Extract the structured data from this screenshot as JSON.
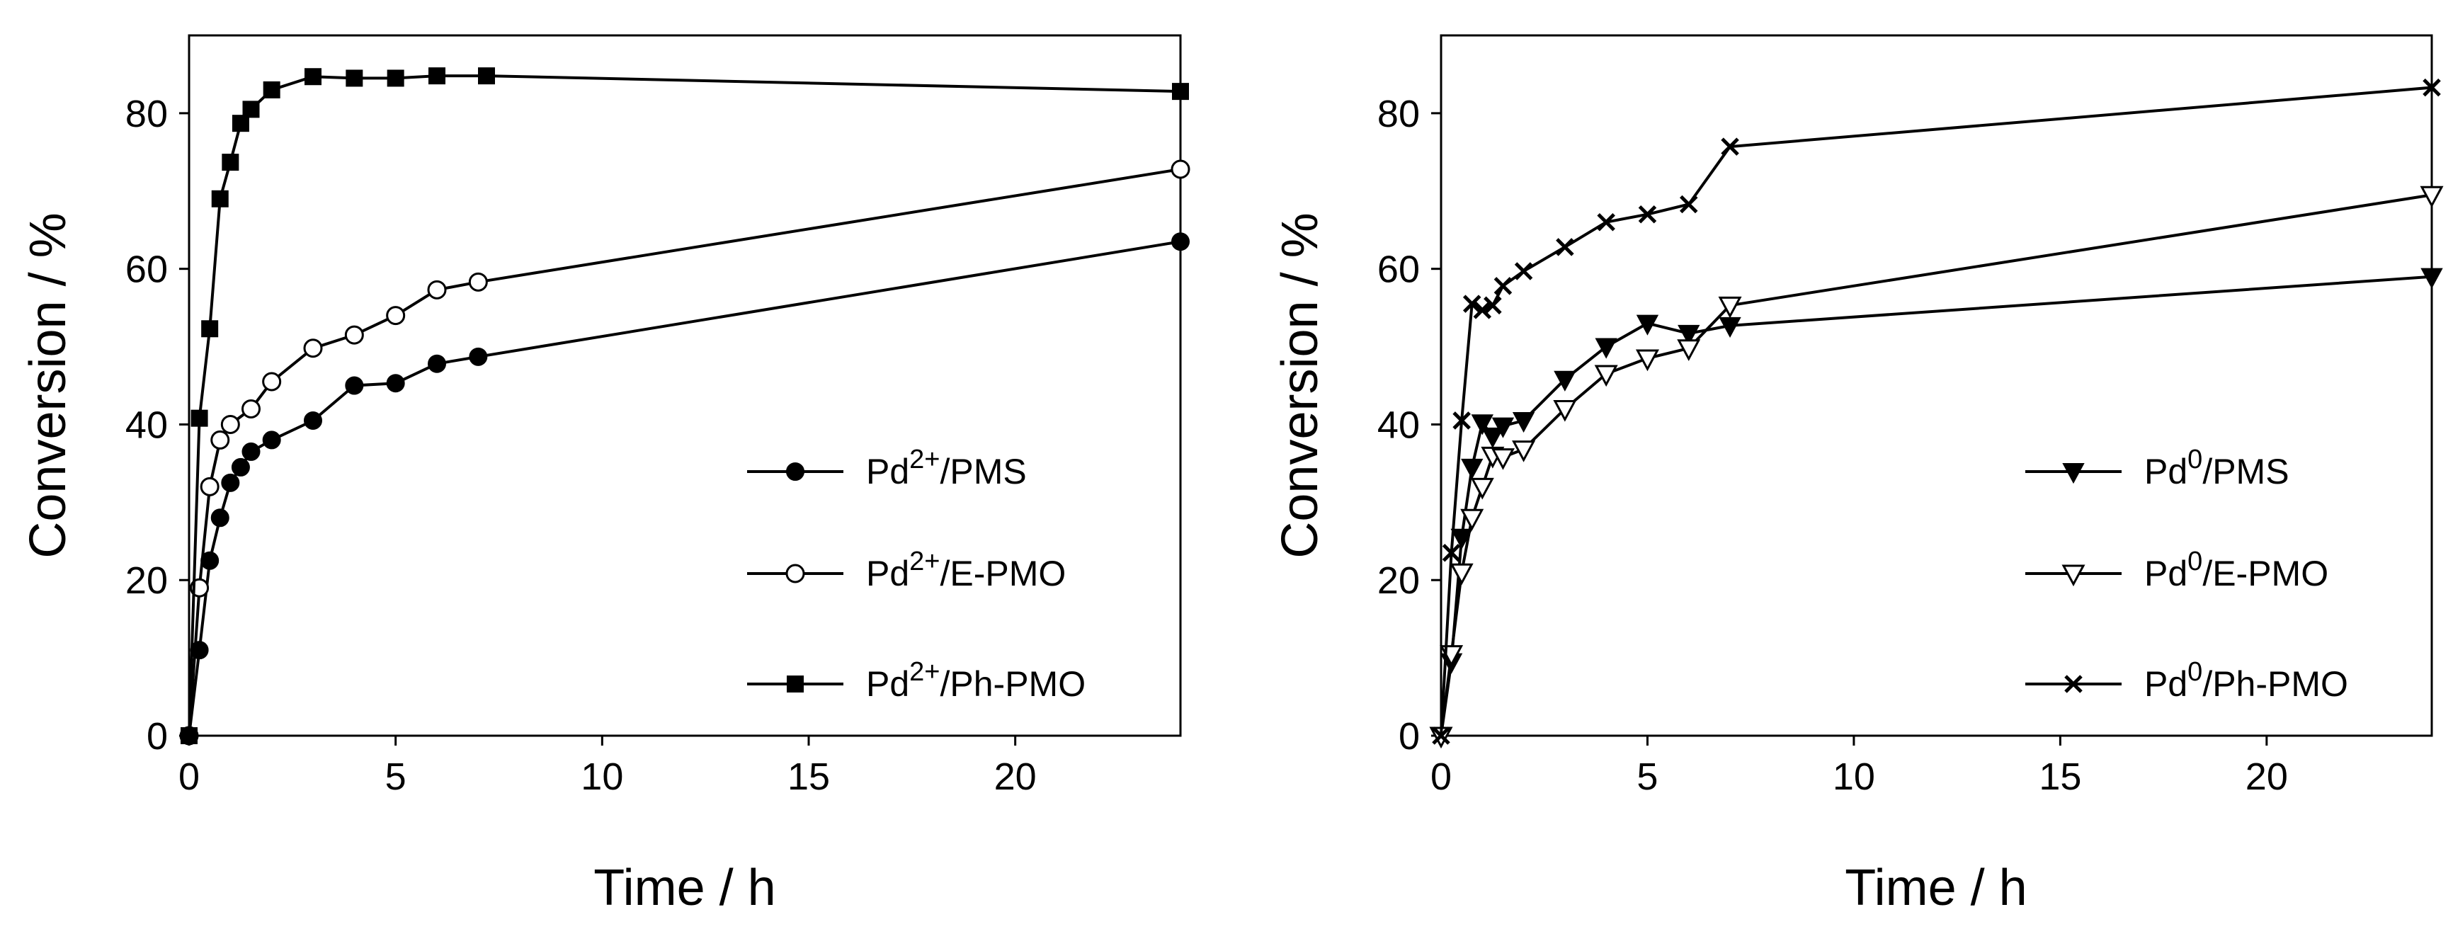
{
  "chart_data": [
    {
      "type": "line",
      "panel": "left",
      "xlabel": "Time / h",
      "ylabel": "Conversion / %",
      "xlim": [
        0,
        24
      ],
      "ylim": [
        0,
        90
      ],
      "xticks": [
        0,
        5,
        10,
        15,
        20
      ],
      "yticks": [
        0,
        20,
        40,
        60,
        80
      ],
      "grid": false,
      "legend_position": "lower-right",
      "series": [
        {
          "name": "Pd2+/PMS",
          "legend_main": "Pd",
          "legend_sup": "2+",
          "legend_rest": "/PMS",
          "marker": "filled-circle",
          "x": [
            0,
            0.25,
            0.5,
            0.75,
            1,
            1.25,
            1.5,
            2,
            3,
            4,
            5,
            6,
            7,
            24
          ],
          "y": [
            0,
            11,
            22.5,
            28,
            32.5,
            34.5,
            36.5,
            38,
            40.5,
            45,
            45.3,
            47.8,
            48.7,
            63.5
          ]
        },
        {
          "name": "Pd2+/E-PMO",
          "legend_main": "Pd",
          "legend_sup": "2+",
          "legend_rest": "/E-PMO",
          "marker": "open-circle",
          "x": [
            0,
            0.25,
            0.5,
            0.75,
            1,
            1.5,
            2,
            3,
            4,
            5,
            6,
            7,
            24
          ],
          "y": [
            0,
            19,
            32,
            38,
            40,
            42,
            45.5,
            49.8,
            51.5,
            54,
            57.3,
            58.3,
            72.8
          ]
        },
        {
          "name": "Pd2+/Ph-PMO",
          "legend_main": "Pd",
          "legend_sup": "2+",
          "legend_rest": "/Ph-PMO",
          "marker": "filled-square",
          "x": [
            0,
            0.25,
            0.5,
            0.75,
            1,
            1.25,
            1.5,
            2,
            3,
            4,
            5,
            6,
            7.2,
            24
          ],
          "y": [
            0,
            40.8,
            52.3,
            69,
            73.7,
            78.7,
            80.5,
            83,
            84.7,
            84.5,
            84.5,
            84.8,
            84.8,
            82.8
          ]
        }
      ]
    },
    {
      "type": "line",
      "panel": "right",
      "xlabel": "Time / h",
      "ylabel": "Conversion / %",
      "xlim": [
        0,
        24
      ],
      "ylim": [
        0,
        90
      ],
      "xticks": [
        0,
        5,
        10,
        15,
        20
      ],
      "yticks": [
        0,
        20,
        40,
        60,
        80
      ],
      "grid": false,
      "legend_position": "lower-right",
      "series": [
        {
          "name": "Pd0/PMS",
          "legend_main": "Pd",
          "legend_sup": "0",
          "legend_rest": "/PMS",
          "marker": "filled-triangle-down",
          "x": [
            0,
            0.25,
            0.5,
            0.75,
            1,
            1.25,
            1.5,
            2,
            3,
            4,
            5,
            6,
            7,
            24
          ],
          "y": [
            0,
            9.5,
            25.5,
            34.5,
            40.2,
            38.5,
            39.8,
            40.5,
            45.8,
            50,
            53,
            51.7,
            52.7,
            59
          ]
        },
        {
          "name": "Pd0/E-PMO",
          "legend_main": "Pd",
          "legend_sup": "0",
          "legend_rest": "/E-PMO",
          "marker": "open-triangle-down",
          "x": [
            0,
            0.25,
            0.5,
            0.75,
            1,
            1.25,
            1.5,
            2,
            3,
            4,
            5,
            6,
            7,
            24
          ],
          "y": [
            0,
            10.5,
            21,
            28,
            32,
            36,
            35.8,
            36.8,
            42,
            46.5,
            48.5,
            49.8,
            55.3,
            69.5
          ]
        },
        {
          "name": "Pd0/Ph-PMO",
          "legend_main": "Pd",
          "legend_sup": "0",
          "legend_rest": "/Ph-PMO",
          "marker": "x",
          "x": [
            0,
            0.25,
            0.5,
            0.75,
            1,
            1.25,
            1.5,
            2,
            3,
            4,
            5,
            6,
            7,
            24
          ],
          "y": [
            0,
            23.5,
            40.5,
            55.5,
            54.7,
            55.3,
            57.8,
            59.7,
            62.8,
            66,
            67,
            68.3,
            75.7,
            83.3
          ]
        }
      ]
    }
  ]
}
